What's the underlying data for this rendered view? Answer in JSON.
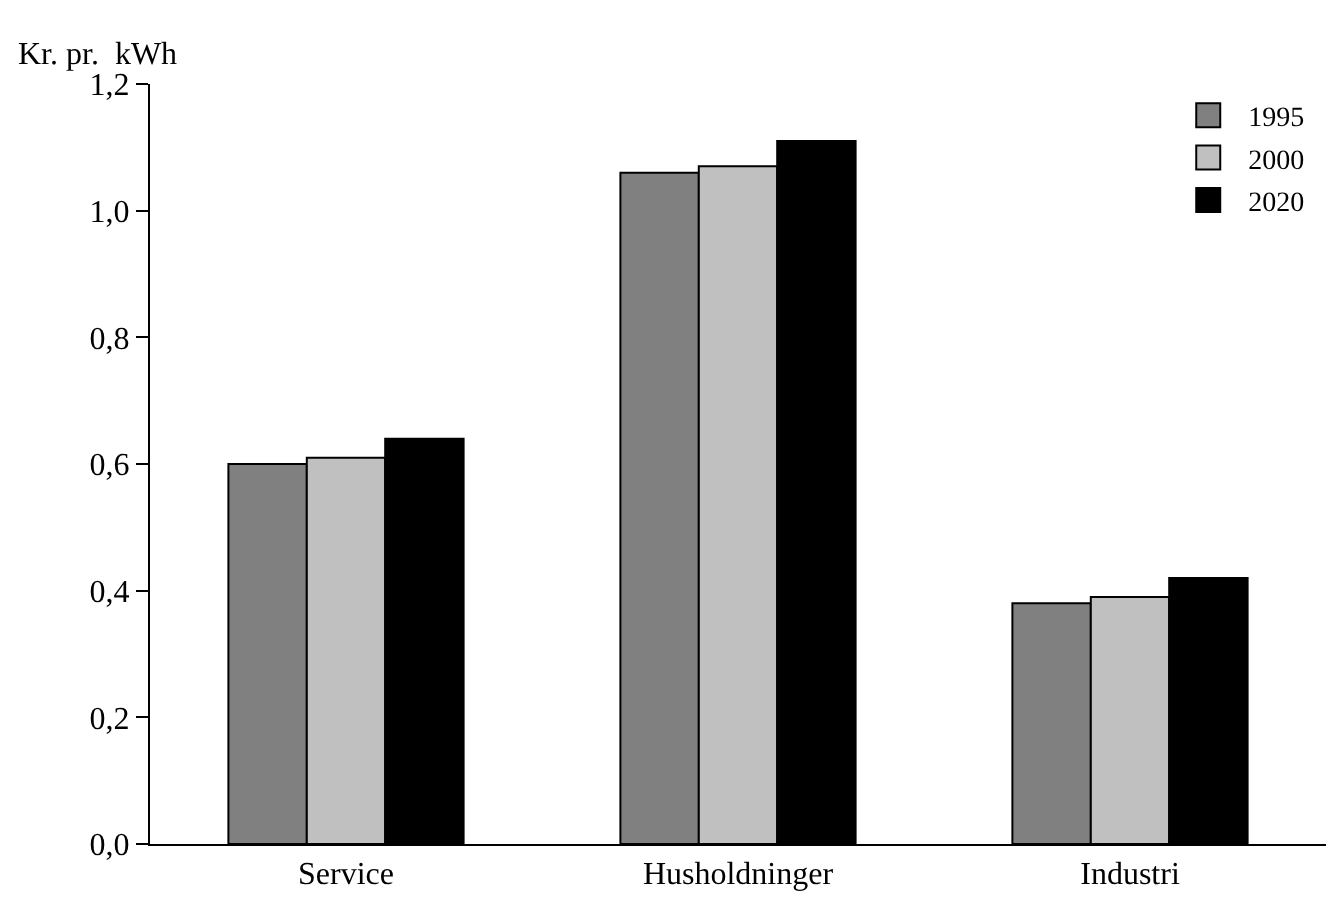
{
  "chart_data": {
    "type": "bar",
    "ylabel": "Kr. pr.  kWh",
    "categories": [
      "Service",
      "Husholdninger",
      "Industri"
    ],
    "series": [
      {
        "name": "1995",
        "color": "#808080",
        "values": [
          0.6,
          1.06,
          0.38
        ]
      },
      {
        "name": "2000",
        "color": "#c0c0c0",
        "values": [
          0.61,
          1.07,
          0.39
        ]
      },
      {
        "name": "2020",
        "color": "#000000",
        "values": [
          0.64,
          1.11,
          0.42
        ]
      }
    ],
    "ylim": [
      0,
      1.2
    ],
    "yticks": [
      {
        "value": 0,
        "label": "0,0"
      },
      {
        "value": 0.2,
        "label": "0,2"
      },
      {
        "value": 0.4,
        "label": "0,4"
      },
      {
        "value": 0.6,
        "label": "0,6"
      },
      {
        "value": 0.8,
        "label": "0,8"
      },
      {
        "value": 1.0,
        "label": "1,0"
      },
      {
        "value": 1.2,
        "label": "1,2"
      }
    ],
    "grid": false,
    "legend": "top right"
  }
}
